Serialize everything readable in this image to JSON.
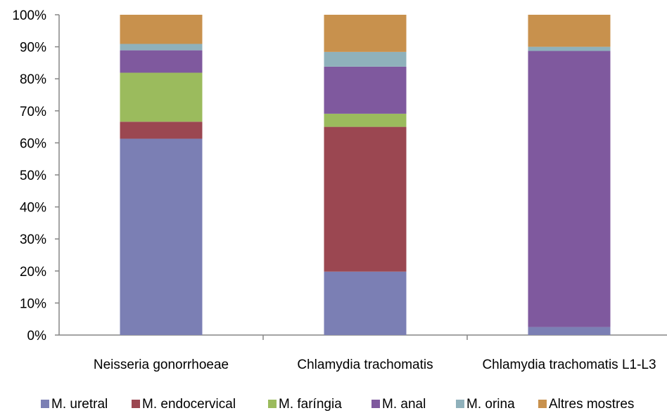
{
  "chart_data": {
    "type": "bar",
    "stacked": true,
    "percent": true,
    "categories": [
      "Neisseria gonorrhoeae",
      "Chlamydia trachomatis",
      "Chlamydia trachomatis L1-L3"
    ],
    "series": [
      {
        "name": "M. uretral",
        "color": "#7b7fb4",
        "values": [
          61.3,
          19.8,
          2.5
        ]
      },
      {
        "name": "M. endocervical",
        "color": "#9b4751",
        "values": [
          5.3,
          45.2,
          0
        ]
      },
      {
        "name": "M. faríngia",
        "color": "#9bbb5d",
        "values": [
          15.3,
          4.1,
          0
        ]
      },
      {
        "name": "M. anal",
        "color": "#7f599e",
        "values": [
          7.0,
          14.7,
          86.2
        ]
      },
      {
        "name": "M. orina",
        "color": "#8fb1bb",
        "values": [
          2.0,
          4.6,
          1.3
        ]
      },
      {
        "name": "Altres mostres",
        "color": "#c8914d",
        "values": [
          9.1,
          11.6,
          10.0
        ]
      }
    ],
    "yticks": [
      "0%",
      "10%",
      "20%",
      "30%",
      "40%",
      "50%",
      "60%",
      "70%",
      "80%",
      "90%",
      "100%"
    ],
    "ylim": [
      0,
      100
    ],
    "grid": false,
    "legend_position": "bottom"
  }
}
